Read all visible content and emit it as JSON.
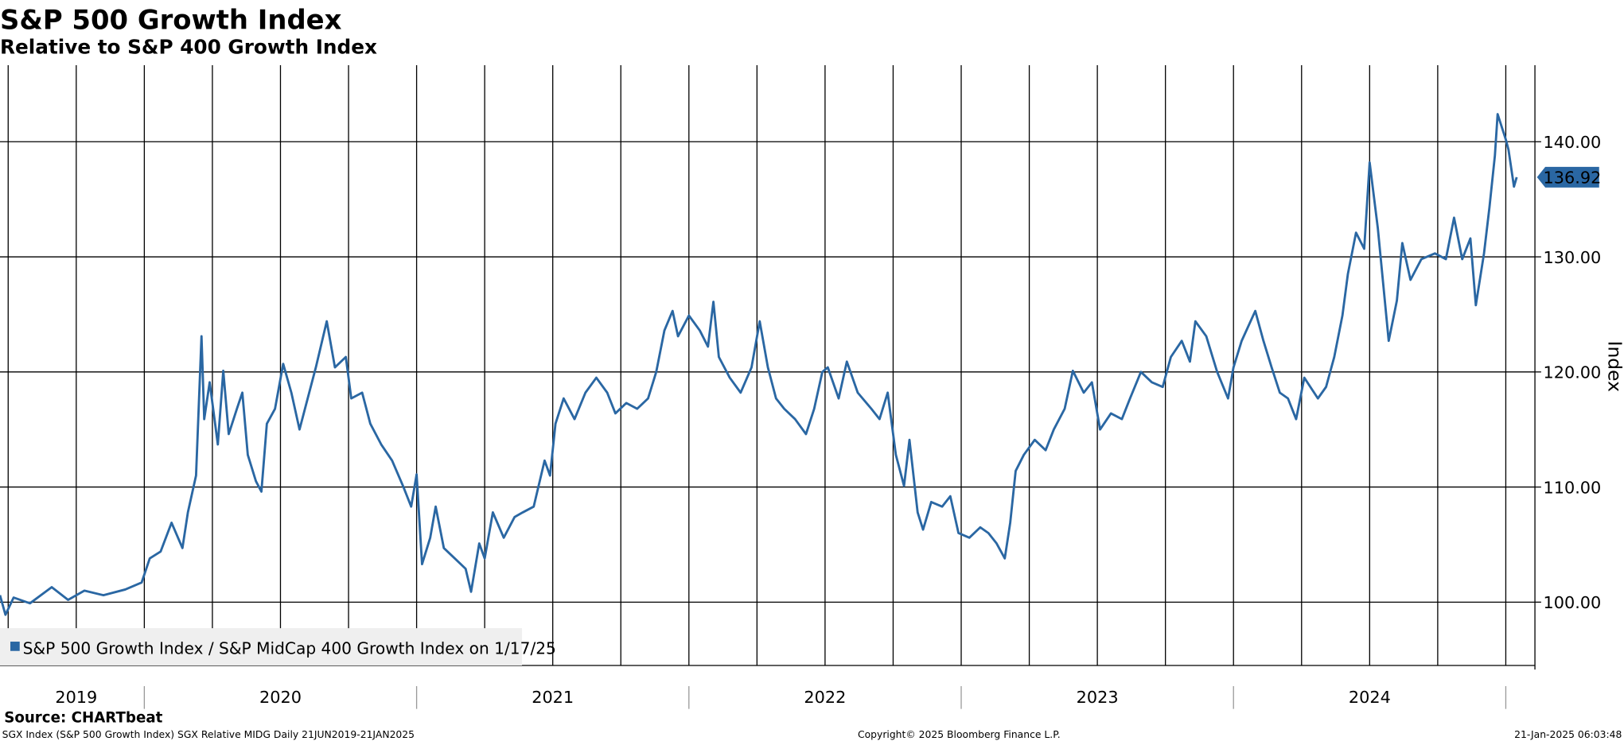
{
  "chart_data": {
    "type": "line",
    "title": "S&P 500 Growth Index",
    "subtitle": "Relative to S&P 400 Growth Index",
    "y_label": "Index",
    "source": "Source: CHARTbeat",
    "footer_left": "SGX Index (S&P 500 Growth Index) SGX Relative MIDG  Daily 21JUN2019-21JAN2025",
    "footer_center": "Copyright© 2025 Bloomberg Finance L.P.",
    "footer_right": "21-Jan-2025 06:03:48",
    "last_value": {
      "value": 136.92,
      "label": "136.92"
    },
    "xlim": [
      2019.47,
      2025.107
    ],
    "ylim": [
      94.5,
      146.65
    ],
    "yticks": [
      {
        "value": 100,
        "label": "100.00"
      },
      {
        "value": 110,
        "label": "110.00"
      },
      {
        "value": 120,
        "label": "120.00"
      },
      {
        "value": 130,
        "label": "130.00"
      },
      {
        "value": 140,
        "label": "140.00"
      }
    ],
    "xticks": [
      {
        "value": 2019.75,
        "label": "2019"
      },
      {
        "value": 2020.5,
        "label": "2020"
      },
      {
        "value": 2021.5,
        "label": "2021"
      },
      {
        "value": 2022.5,
        "label": "2022"
      },
      {
        "value": 2023.5,
        "label": "2023"
      },
      {
        "value": 2024.5,
        "label": "2024"
      }
    ],
    "xgrid": [
      2019.5,
      2019.75,
      2020,
      2020.25,
      2020.5,
      2020.75,
      2021,
      2021.25,
      2021.5,
      2021.75,
      2022,
      2022.25,
      2022.5,
      2022.75,
      2023,
      2023.25,
      2023.5,
      2023.75,
      2024,
      2024.25,
      2024.5,
      2024.75,
      2025
    ],
    "grid": true,
    "legend_position": "bottom-left",
    "x": [
      2019.47,
      2019.49,
      2019.52,
      2019.58,
      2019.66,
      2019.72,
      2019.78,
      2019.85,
      2019.93,
      2019.99,
      2020.02,
      2020.06,
      2020.1,
      2020.14,
      2020.16,
      2020.19,
      2020.21,
      2020.22,
      2020.24,
      2020.27,
      2020.29,
      2020.31,
      2020.34,
      2020.36,
      2020.38,
      2020.41,
      2020.43,
      2020.45,
      2020.48,
      2020.51,
      2020.54,
      2020.57,
      2020.59,
      2020.63,
      2020.67,
      2020.7,
      2020.74,
      2020.76,
      2020.8,
      2020.83,
      2020.87,
      2020.91,
      2020.95,
      2020.98,
      2021.0,
      2021.02,
      2021.05,
      2021.07,
      2021.1,
      2021.14,
      2021.18,
      2021.2,
      2021.23,
      2021.25,
      2021.28,
      2021.32,
      2021.36,
      2021.39,
      2021.43,
      2021.47,
      2021.49,
      2021.51,
      2021.54,
      2021.58,
      2021.62,
      2021.66,
      2021.7,
      2021.73,
      2021.77,
      2021.81,
      2021.85,
      2021.88,
      2021.91,
      2021.94,
      2021.96,
      2022.0,
      2022.04,
      2022.07,
      2022.09,
      2022.11,
      2022.15,
      2022.19,
      2022.23,
      2022.26,
      2022.29,
      2022.32,
      2022.35,
      2022.39,
      2022.43,
      2022.46,
      2022.49,
      2022.51,
      2022.55,
      2022.58,
      2022.62,
      2022.67,
      2022.7,
      2022.73,
      2022.76,
      2022.79,
      2022.81,
      2022.84,
      2022.86,
      2022.89,
      2022.93,
      2022.96,
      2022.99,
      2023.03,
      2023.07,
      2023.1,
      2023.13,
      2023.16,
      2023.18,
      2023.2,
      2023.23,
      2023.27,
      2023.31,
      2023.34,
      2023.38,
      2023.41,
      2023.45,
      2023.48,
      2023.51,
      2023.55,
      2023.59,
      2023.62,
      2023.66,
      2023.7,
      2023.74,
      2023.77,
      2023.81,
      2023.84,
      2023.86,
      2023.9,
      2023.94,
      2023.98,
      2024.0,
      2024.03,
      2024.08,
      2024.11,
      2024.14,
      2024.17,
      2024.2,
      2024.23,
      2024.26,
      2024.31,
      2024.34,
      2024.37,
      2024.4,
      2024.42,
      2024.45,
      2024.48,
      2024.5,
      2024.53,
      2024.55,
      2024.57,
      2024.6,
      2024.62,
      2024.65,
      2024.69,
      2024.74,
      2024.78,
      2024.81,
      2024.84,
      2024.87,
      2024.89,
      2024.92,
      2024.94,
      2024.96,
      2024.97,
      2025.0,
      2025.01,
      2025.03,
      2025.04
    ],
    "series": [
      {
        "name": "S&P 500 Growth Index / S&P MidCap 400 Growth Index on 1/17/25",
        "color": "#2a67a3",
        "values": [
          100.6,
          98.9,
          100.4,
          99.9,
          101.3,
          100.2,
          101.0,
          100.6,
          101.1,
          101.7,
          103.8,
          104.4,
          106.9,
          104.7,
          107.8,
          111.0,
          123.1,
          115.9,
          119.1,
          113.7,
          120.1,
          114.6,
          116.8,
          118.2,
          112.8,
          110.5,
          109.6,
          115.5,
          116.8,
          120.7,
          118.2,
          115.0,
          116.8,
          120.4,
          124.4,
          120.4,
          121.3,
          117.7,
          118.2,
          115.5,
          113.7,
          112.3,
          110.1,
          108.3,
          111.1,
          103.3,
          105.6,
          108.3,
          104.7,
          103.8,
          102.9,
          100.9,
          105.1,
          103.8,
          107.8,
          105.6,
          107.4,
          107.8,
          108.3,
          112.3,
          111.0,
          115.5,
          117.7,
          115.9,
          118.2,
          119.5,
          118.2,
          116.4,
          117.3,
          116.8,
          117.7,
          120.0,
          123.6,
          125.3,
          123.1,
          124.9,
          123.6,
          122.2,
          126.1,
          121.3,
          119.5,
          118.2,
          120.4,
          124.4,
          120.4,
          117.7,
          116.8,
          115.9,
          114.6,
          116.8,
          120.0,
          120.4,
          117.7,
          120.9,
          118.2,
          116.8,
          115.9,
          118.2,
          112.8,
          110.1,
          114.1,
          107.8,
          106.3,
          108.7,
          108.3,
          109.2,
          106.0,
          105.6,
          106.5,
          106.0,
          105.1,
          103.8,
          106.9,
          111.4,
          112.8,
          114.1,
          113.2,
          115.0,
          116.8,
          120.1,
          118.2,
          119.1,
          115.0,
          116.4,
          115.9,
          117.7,
          120.0,
          119.1,
          118.7,
          121.3,
          122.7,
          120.9,
          124.4,
          123.1,
          120.0,
          117.7,
          120.4,
          122.7,
          125.3,
          122.7,
          120.4,
          118.2,
          117.7,
          115.9,
          119.5,
          117.7,
          118.7,
          121.3,
          124.9,
          128.5,
          132.1,
          130.7,
          138.2,
          132.5,
          127.6,
          122.7,
          126.2,
          131.2,
          128.0,
          129.8,
          130.3,
          129.8,
          133.4,
          129.8,
          131.6,
          125.8,
          130.3,
          134.3,
          138.8,
          142.4,
          140.2,
          139.3,
          136.1,
          136.92
        ]
      }
    ]
  }
}
